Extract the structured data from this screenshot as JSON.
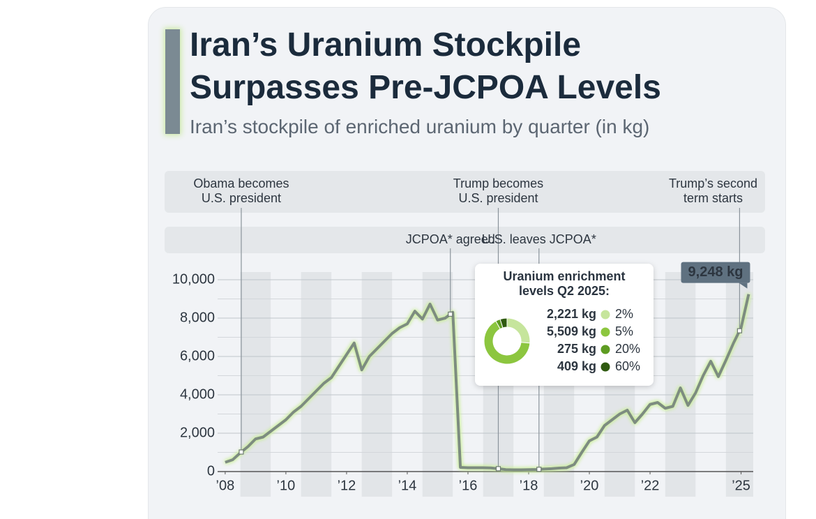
{
  "chart_data": {
    "type": "line",
    "title": "Iran’s Uranium Stockpile Surpasses Pre-JCPOA Levels",
    "subtitle": "Iran’s stockpile of enriched uranium by quarter (in kg)",
    "x": [
      2008,
      2008.25,
      2008.5,
      2008.75,
      2009,
      2009.25,
      2009.5,
      2009.75,
      2010,
      2010.25,
      2010.5,
      2010.75,
      2011,
      2011.25,
      2011.5,
      2011.75,
      2012,
      2012.25,
      2012.5,
      2012.75,
      2013,
      2013.25,
      2013.5,
      2013.75,
      2014,
      2014.25,
      2014.5,
      2014.75,
      2015,
      2015.25,
      2015.5,
      2015.75,
      2016,
      2016.25,
      2016.5,
      2016.75,
      2017,
      2017.25,
      2017.5,
      2017.75,
      2018,
      2018.25,
      2018.5,
      2018.75,
      2019,
      2019.25,
      2019.5,
      2019.75,
      2020,
      2020.25,
      2020.5,
      2020.75,
      2021,
      2021.25,
      2021.5,
      2021.75,
      2022,
      2022.25,
      2022.5,
      2022.75,
      2023,
      2023.25,
      2023.5,
      2023.75,
      2024,
      2024.25,
      2024.5,
      2024.75,
      2025,
      2025.25
    ],
    "series": [
      {
        "color": "#7d8c80",
        "values": [
          480,
          620,
          980,
          1300,
          1700,
          1800,
          2100,
          2400,
          2700,
          3100,
          3400,
          3800,
          4200,
          4600,
          4900,
          5500,
          6100,
          6700,
          5300,
          6000,
          6400,
          6800,
          7200,
          7500,
          7700,
          8360,
          7950,
          8730,
          7900,
          8000,
          8300,
          220,
          200,
          200,
          200,
          190,
          150,
          100,
          90,
          90,
          100,
          110,
          130,
          150,
          180,
          200,
          370,
          1000,
          1600,
          1800,
          2400,
          2700,
          3000,
          3200,
          2550,
          3000,
          3500,
          3600,
          3300,
          3400,
          4360,
          3450,
          4100,
          5000,
          5750,
          4950,
          5800,
          6700,
          7500,
          9248
        ],
        "value_labels": [
          null,
          null,
          null,
          null,
          null,
          null,
          null,
          null,
          null,
          null,
          null,
          null,
          null,
          null,
          null,
          null,
          null,
          null,
          null,
          null,
          null,
          null,
          null,
          null,
          null,
          null,
          null,
          null,
          null,
          null,
          null,
          null,
          null,
          null,
          null,
          null,
          null,
          null,
          null,
          null,
          null,
          null,
          null,
          null,
          null,
          null,
          null,
          null,
          null,
          null,
          null,
          null,
          null,
          null,
          null,
          null,
          null,
          null,
          null,
          null,
          null,
          null,
          null,
          null,
          null,
          null,
          null,
          null,
          null,
          "9,248 kg"
        ]
      }
    ],
    "xlim": [
      2007.75,
      2025.4
    ],
    "xticks": [
      {
        "value": 2008,
        "label": "’08"
      },
      {
        "value": 2010,
        "label": "’10"
      },
      {
        "value": 2012,
        "label": "’12"
      },
      {
        "value": 2014,
        "label": "’14"
      },
      {
        "value": 2016,
        "label": "’16"
      },
      {
        "value": 2018,
        "label": "’18"
      },
      {
        "value": 2020,
        "label": "’20"
      },
      {
        "value": 2022,
        "label": "’22"
      },
      {
        "value": 2025,
        "label": "’25"
      }
    ],
    "ylim": [
      0,
      10400
    ],
    "yticks": [
      0,
      {
        "value": 2000,
        "label": "2,000"
      },
      {
        "value": 4000,
        "label": "4,000"
      },
      {
        "value": 6000,
        "label": "6,000"
      },
      {
        "value": 8000,
        "label": "8,000"
      },
      {
        "value": 10000,
        "label": "10,000"
      }
    ],
    "yticks_minor": [
      1000,
      3000,
      5000,
      7000,
      9000
    ],
    "grid": true,
    "annotations": {
      "top": [
        {
          "lines": [
            "Obama becomes",
            "U.S. president"
          ],
          "x": 2008.53
        },
        {
          "lines": [
            "Trump becomes",
            "U.S. president"
          ],
          "x": 2017.0
        },
        {
          "lines": [
            "Trump’s second",
            "term starts"
          ],
          "x": 2024.95
        }
      ],
      "bottom": [
        {
          "lines": [
            "JCPOA* agreed"
          ],
          "x": 2015.42
        },
        {
          "lines": [
            "U.S. leaves JCPOA*"
          ],
          "x": 2018.34
        }
      ]
    },
    "inset": {
      "type": "donut",
      "title": "Uranium enrichment levels Q2 2025:",
      "categories": [
        "2%",
        "5%",
        "20%",
        "60%"
      ],
      "values": [
        2221,
        5509,
        275,
        409
      ],
      "value_labels": [
        "2,221 kg",
        "5,509 kg",
        "275 kg",
        "409 kg"
      ],
      "colors": [
        "#c6e59c",
        "#8cc63f",
        "#5e9c22",
        "#2f5a10"
      ]
    }
  }
}
